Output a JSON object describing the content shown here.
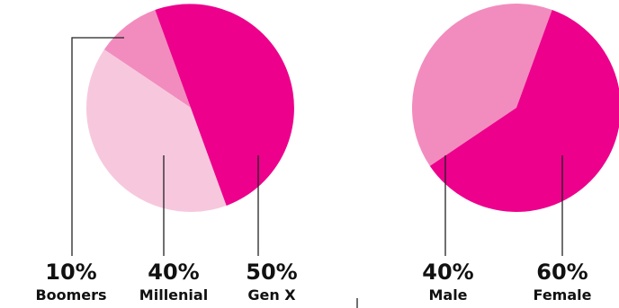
{
  "chart_data": [
    {
      "type": "pie",
      "slices": [
        {
          "label": "Boomers",
          "value": 10,
          "display": "10%",
          "color": "#f28cbe"
        },
        {
          "label": "Millenial",
          "value": 40,
          "display": "40%",
          "color": "#f7c8dd"
        },
        {
          "label": "Gen X",
          "value": 50,
          "display": "50%",
          "color": "#ec008c"
        }
      ]
    },
    {
      "type": "pie",
      "slices": [
        {
          "label": "Male",
          "value": 40,
          "display": "40%",
          "color": "#f28cbe"
        },
        {
          "label": "Female",
          "value": 60,
          "display": "60%",
          "color": "#ec008c"
        }
      ]
    }
  ]
}
